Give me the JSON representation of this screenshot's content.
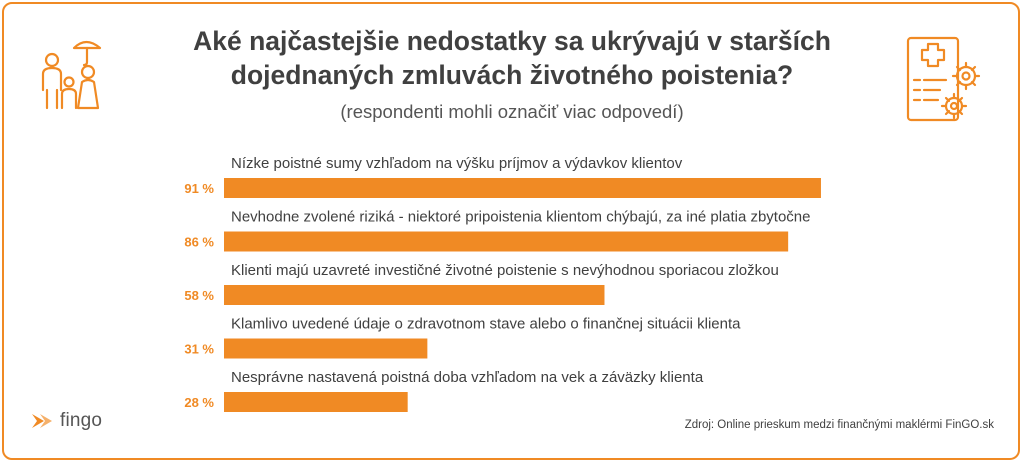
{
  "header": {
    "title_line1": "Aké najčastejšie nedostatky sa ukrývajú v starších",
    "title_line2": "dojednaných zmluvách životného poistenia?",
    "subtitle": "(respondenti mohli označiť viac odpovedí)"
  },
  "chart_data": {
    "type": "bar",
    "orientation": "horizontal",
    "title": "Aké najčastejšie nedostatky sa ukrývajú v starších dojednaných zmluvách životného poistenia?",
    "subtitle": "(respondenti mohli označiť viac odpovedí)",
    "categories": [
      "Nízke poistné sumy vzhľadom na výšku príjmov a výdavkov klientov",
      "Nevhodne zvolené riziká - niektoré pripoistenia klientom chýbajú, za iné platia zbytočne",
      "Klienti majú uzavreté investičné životné poistenie s nevýhodnou sporiacou zložkou",
      "Klamlivo uvedené údaje o zdravotnom stave alebo o finančnej situácii klienta",
      "Nesprávne nastavená poistná doba vzhľadom na vek a záväzky klienta"
    ],
    "values": [
      91,
      86,
      58,
      31,
      28
    ],
    "value_labels": [
      "91 %",
      "86 %",
      "58 %",
      "31 %",
      "28 %"
    ],
    "xlim": [
      0,
      100
    ],
    "grid": false,
    "legend": "none",
    "bar_color": "#f08a24"
  },
  "footer": {
    "source": "Zdroj: Online prieskum medzi finančnými maklérmi FinGO.sk",
    "logo_text": "fingo"
  },
  "icons": {
    "left": "family-umbrella-icon",
    "right": "insurance-document-gears-icon",
    "logo": "fingo-arrow-icon"
  },
  "colors": {
    "accent": "#f08a24",
    "text": "#404040"
  }
}
